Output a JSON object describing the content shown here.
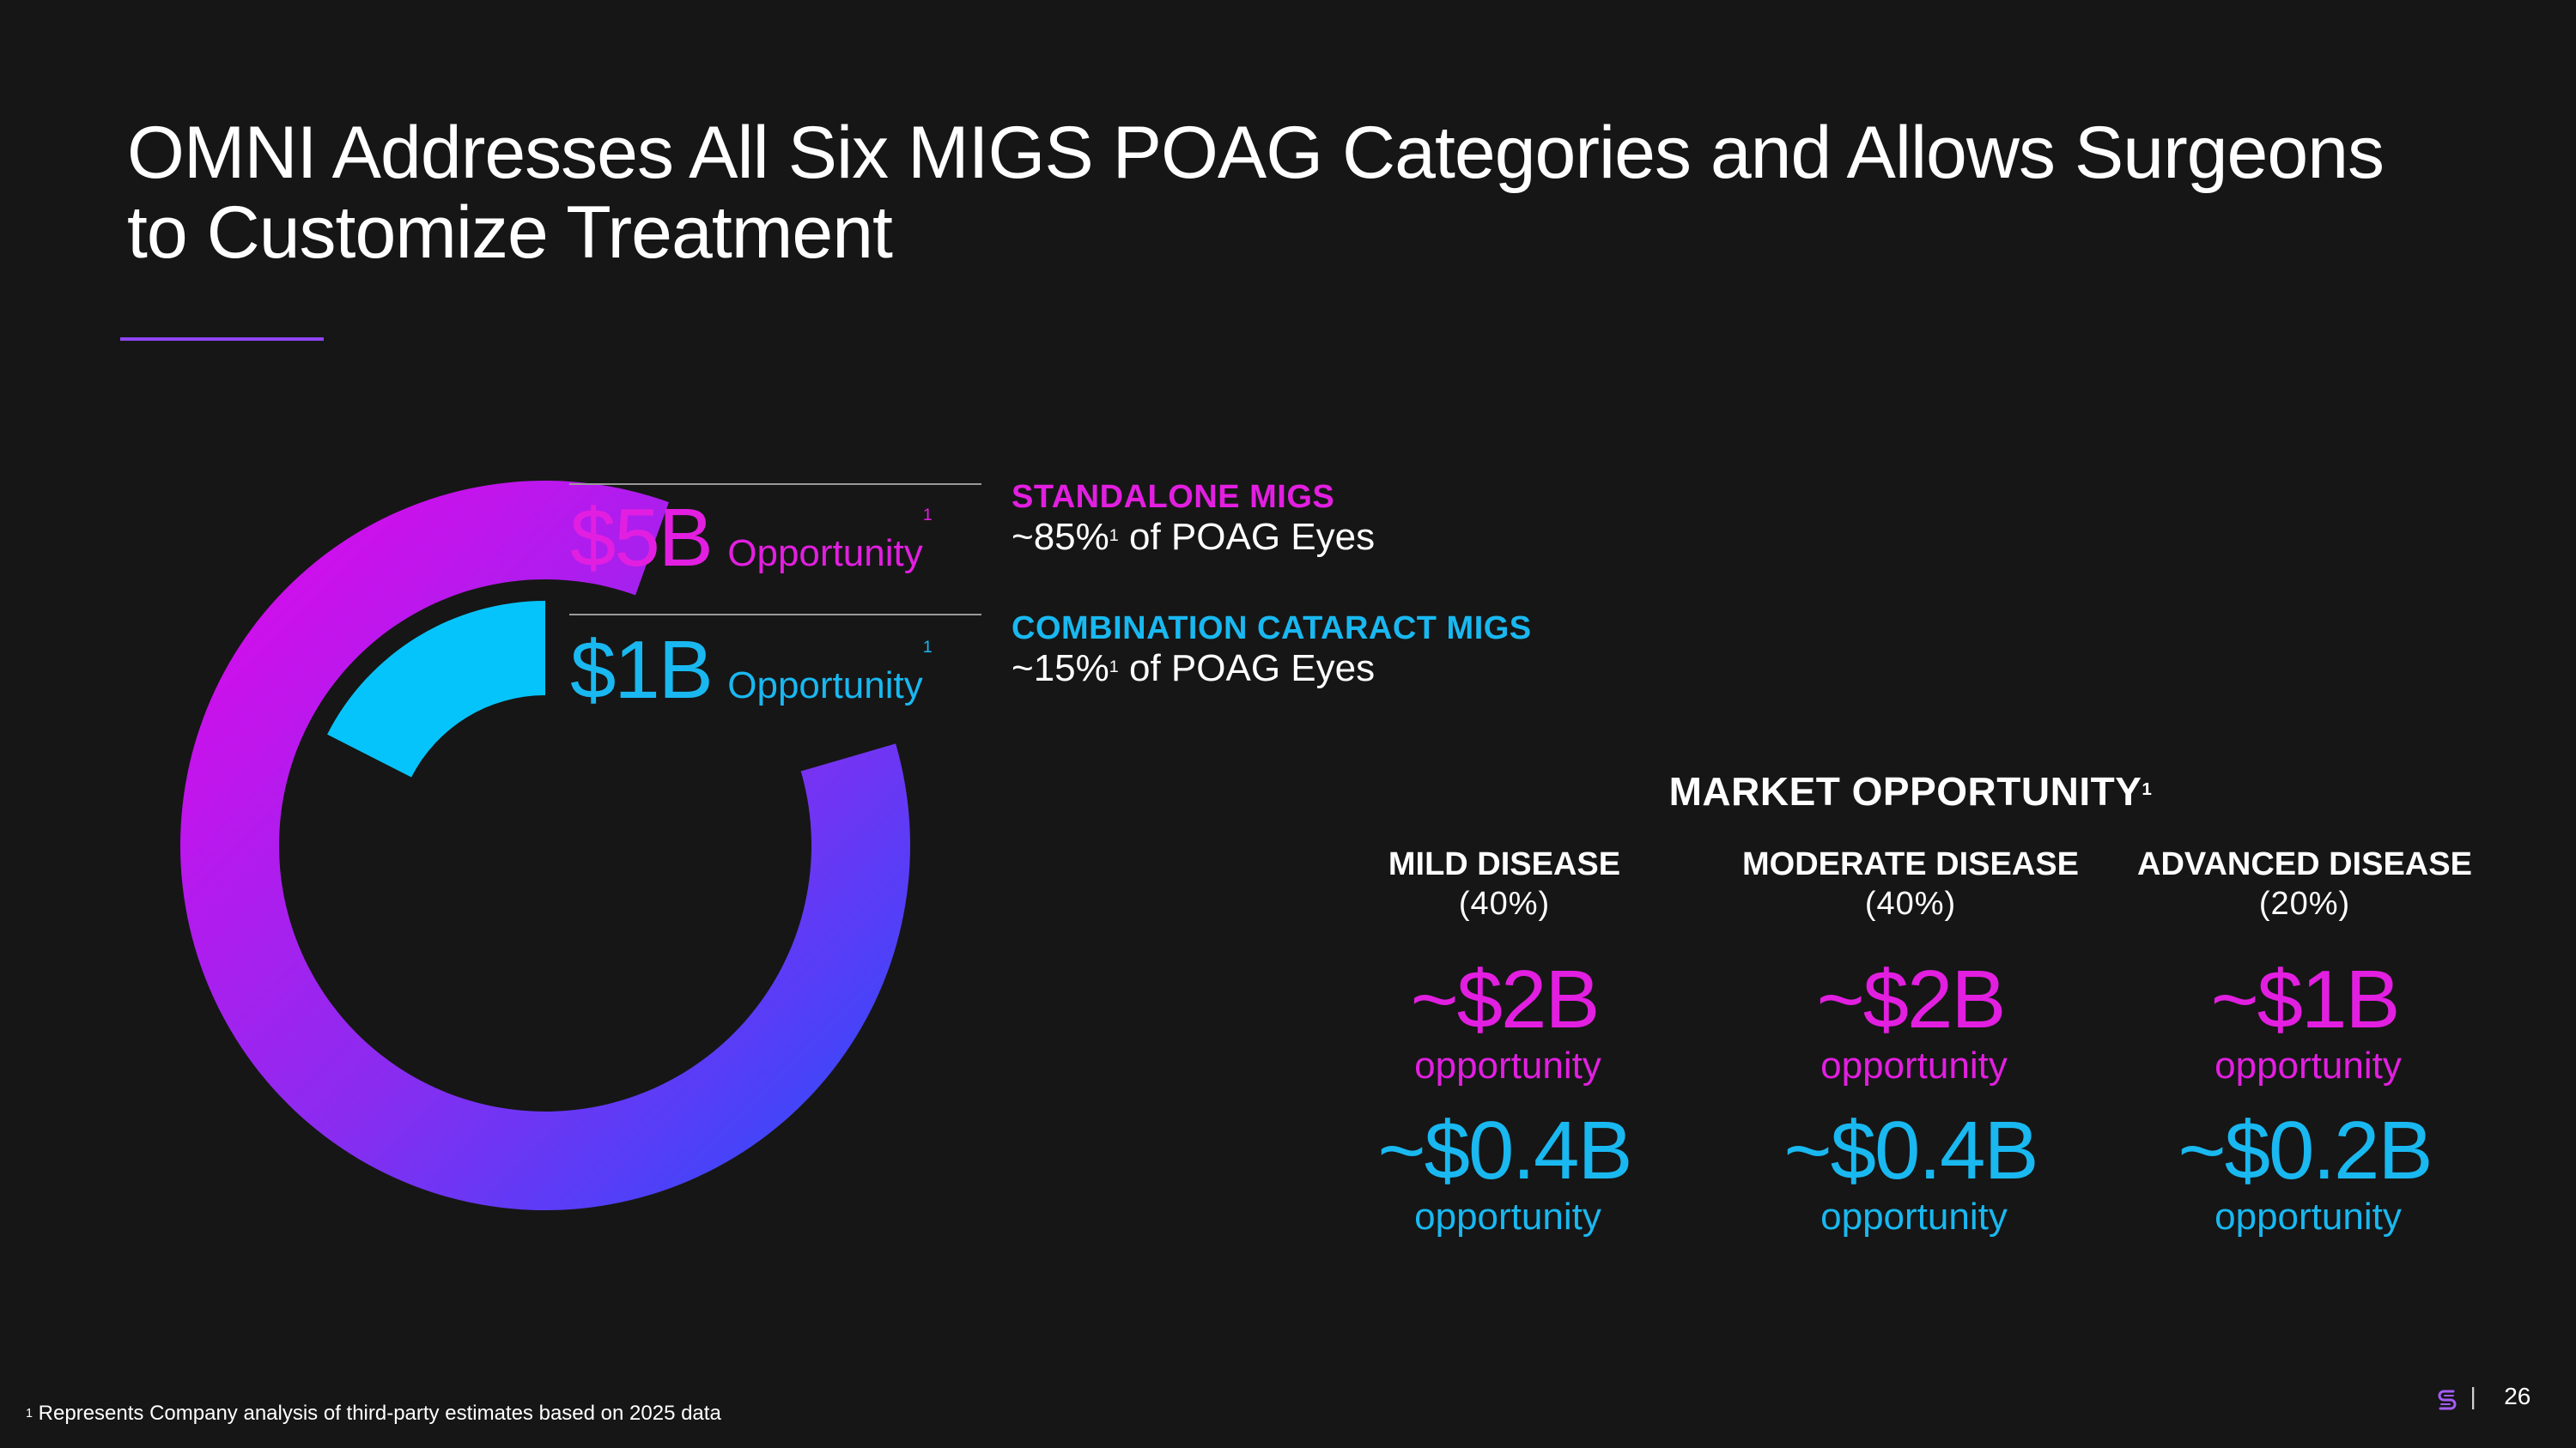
{
  "slide": {
    "title_line1": "OMNI Addresses All Six MIGS POAG Categories and Allows Surgeons",
    "title_line2": "to Customize Treatment",
    "page_number": "26",
    "separator": "|"
  },
  "colors": {
    "background": "#161616",
    "magenta": "#e21fe0",
    "cyan": "#19b8f0",
    "donut_cyan": "#05c4fb",
    "donut_blue": "#2250fd",
    "donut_magenta": "#e506ea",
    "accent_purple": "#8f45f5"
  },
  "donut": {
    "segments": [
      {
        "label": "Standalone MIGS",
        "share": 0.85
      },
      {
        "label": "Combination Cataract MIGS",
        "share": 0.15
      }
    ]
  },
  "segments": [
    {
      "value": "$5B",
      "opportunity": "Opportunity",
      "sup": "1",
      "title": "STANDALONE MIGS",
      "desc_prefix": "~85%",
      "desc_sup": "1",
      "desc_suffix": " of POAG Eyes"
    },
    {
      "value": "$1B",
      "opportunity": "Opportunity",
      "sup": "1",
      "title": "COMBINATION CATARACT MIGS",
      "desc_prefix": "~15%",
      "desc_sup": "1",
      "desc_suffix": " of POAG Eyes"
    }
  ],
  "market": {
    "heading": "MARKET OPPORTUNITY",
    "heading_sup": "1",
    "columns": [
      {
        "title": "MILD DISEASE",
        "pct": "(40%)",
        "standalone": "~$2B",
        "standalone_sub": "opportunity",
        "combination": "~$0.4B",
        "combination_sub": "opportunity"
      },
      {
        "title": "MODERATE DISEASE",
        "pct": "(40%)",
        "standalone": "~$2B",
        "standalone_sub": "opportunity",
        "combination": "~$0.4B",
        "combination_sub": "opportunity"
      },
      {
        "title": "ADVANCED DISEASE",
        "pct": "(20%)",
        "standalone": "~$1B",
        "standalone_sub": "opportunity",
        "combination": "~$0.2B",
        "combination_sub": "opportunity"
      }
    ]
  },
  "footnote": {
    "sup": "1",
    "text": " Represents Company analysis of third-party estimates based on 2025 data"
  },
  "icons": {
    "logo": "company-logo-icon"
  }
}
